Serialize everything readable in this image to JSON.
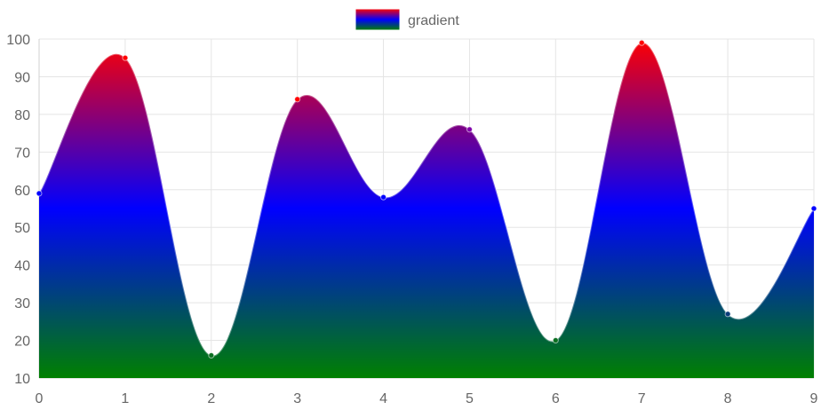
{
  "chart_data": {
    "type": "area",
    "x": [
      0,
      1,
      2,
      3,
      4,
      5,
      6,
      7,
      8,
      9
    ],
    "series": [
      {
        "name": "gradient",
        "values": [
          59,
          95,
          16,
          84,
          58,
          76,
          20,
          99,
          27,
          55
        ]
      }
    ],
    "title": "",
    "xlabel": "",
    "ylabel": "",
    "xlim": [
      0,
      9
    ],
    "ylim": [
      10,
      100
    ],
    "yticks": [
      10,
      20,
      30,
      40,
      50,
      60,
      70,
      80,
      90,
      100
    ],
    "xticks": [
      0,
      1,
      2,
      3,
      4,
      5,
      6,
      7,
      8,
      9
    ],
    "grid": true,
    "legend_position": "top",
    "curve": "smooth",
    "fill_gradient": [
      "#008000",
      "#0000ff",
      "#ff0000"
    ]
  },
  "colors": {
    "gradient_bottom": "#008000",
    "gradient_middle": "#0000ff",
    "gradient_top": "#ff0000",
    "grid": "#e5e5e5",
    "text": "#666666"
  }
}
